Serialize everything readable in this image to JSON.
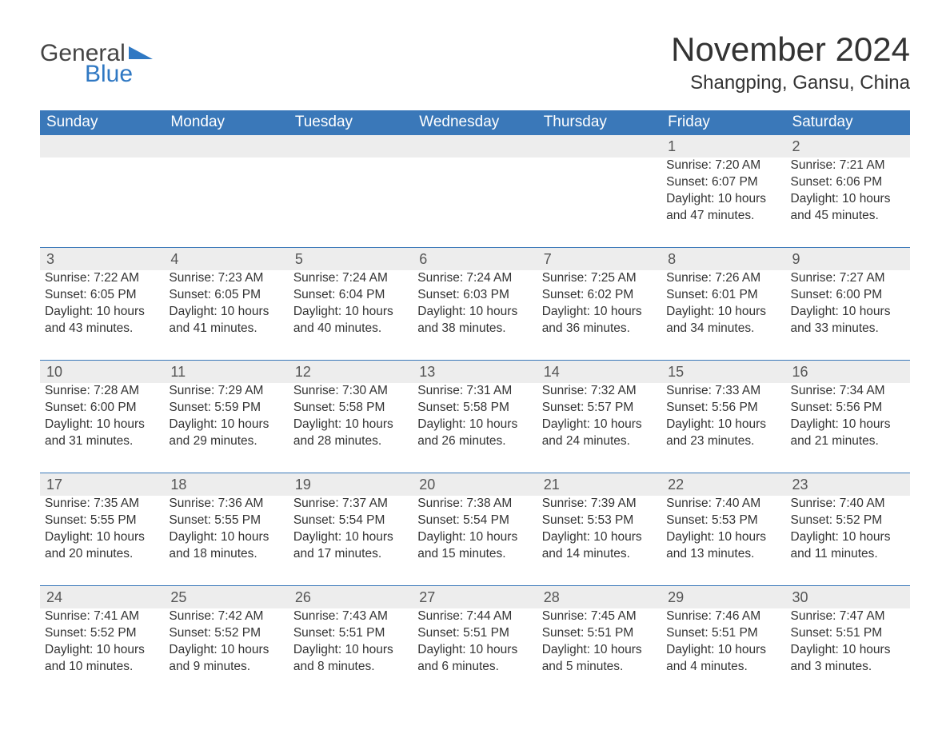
{
  "brand": {
    "part1": "General",
    "part2": "Blue",
    "logo_color": "#2f78c3"
  },
  "title": "November 2024",
  "location": "Shangping, Gansu, China",
  "colors": {
    "header_bg": "#3a78b9",
    "header_text": "#ffffff",
    "daynum_bg": "#ededed",
    "daynum_border": "#3a78b9",
    "body_text": "#333333",
    "background": "#ffffff"
  },
  "weekdays": [
    "Sunday",
    "Monday",
    "Tuesday",
    "Wednesday",
    "Thursday",
    "Friday",
    "Saturday"
  ],
  "weeks": [
    [
      null,
      null,
      null,
      null,
      null,
      {
        "n": "1",
        "sr": "Sunrise: 7:20 AM",
        "ss": "Sunset: 6:07 PM",
        "dl": "Daylight: 10 hours and 47 minutes."
      },
      {
        "n": "2",
        "sr": "Sunrise: 7:21 AM",
        "ss": "Sunset: 6:06 PM",
        "dl": "Daylight: 10 hours and 45 minutes."
      }
    ],
    [
      {
        "n": "3",
        "sr": "Sunrise: 7:22 AM",
        "ss": "Sunset: 6:05 PM",
        "dl": "Daylight: 10 hours and 43 minutes."
      },
      {
        "n": "4",
        "sr": "Sunrise: 7:23 AM",
        "ss": "Sunset: 6:05 PM",
        "dl": "Daylight: 10 hours and 41 minutes."
      },
      {
        "n": "5",
        "sr": "Sunrise: 7:24 AM",
        "ss": "Sunset: 6:04 PM",
        "dl": "Daylight: 10 hours and 40 minutes."
      },
      {
        "n": "6",
        "sr": "Sunrise: 7:24 AM",
        "ss": "Sunset: 6:03 PM",
        "dl": "Daylight: 10 hours and 38 minutes."
      },
      {
        "n": "7",
        "sr": "Sunrise: 7:25 AM",
        "ss": "Sunset: 6:02 PM",
        "dl": "Daylight: 10 hours and 36 minutes."
      },
      {
        "n": "8",
        "sr": "Sunrise: 7:26 AM",
        "ss": "Sunset: 6:01 PM",
        "dl": "Daylight: 10 hours and 34 minutes."
      },
      {
        "n": "9",
        "sr": "Sunrise: 7:27 AM",
        "ss": "Sunset: 6:00 PM",
        "dl": "Daylight: 10 hours and 33 minutes."
      }
    ],
    [
      {
        "n": "10",
        "sr": "Sunrise: 7:28 AM",
        "ss": "Sunset: 6:00 PM",
        "dl": "Daylight: 10 hours and 31 minutes."
      },
      {
        "n": "11",
        "sr": "Sunrise: 7:29 AM",
        "ss": "Sunset: 5:59 PM",
        "dl": "Daylight: 10 hours and 29 minutes."
      },
      {
        "n": "12",
        "sr": "Sunrise: 7:30 AM",
        "ss": "Sunset: 5:58 PM",
        "dl": "Daylight: 10 hours and 28 minutes."
      },
      {
        "n": "13",
        "sr": "Sunrise: 7:31 AM",
        "ss": "Sunset: 5:58 PM",
        "dl": "Daylight: 10 hours and 26 minutes."
      },
      {
        "n": "14",
        "sr": "Sunrise: 7:32 AM",
        "ss": "Sunset: 5:57 PM",
        "dl": "Daylight: 10 hours and 24 minutes."
      },
      {
        "n": "15",
        "sr": "Sunrise: 7:33 AM",
        "ss": "Sunset: 5:56 PM",
        "dl": "Daylight: 10 hours and 23 minutes."
      },
      {
        "n": "16",
        "sr": "Sunrise: 7:34 AM",
        "ss": "Sunset: 5:56 PM",
        "dl": "Daylight: 10 hours and 21 minutes."
      }
    ],
    [
      {
        "n": "17",
        "sr": "Sunrise: 7:35 AM",
        "ss": "Sunset: 5:55 PM",
        "dl": "Daylight: 10 hours and 20 minutes."
      },
      {
        "n": "18",
        "sr": "Sunrise: 7:36 AM",
        "ss": "Sunset: 5:55 PM",
        "dl": "Daylight: 10 hours and 18 minutes."
      },
      {
        "n": "19",
        "sr": "Sunrise: 7:37 AM",
        "ss": "Sunset: 5:54 PM",
        "dl": "Daylight: 10 hours and 17 minutes."
      },
      {
        "n": "20",
        "sr": "Sunrise: 7:38 AM",
        "ss": "Sunset: 5:54 PM",
        "dl": "Daylight: 10 hours and 15 minutes."
      },
      {
        "n": "21",
        "sr": "Sunrise: 7:39 AM",
        "ss": "Sunset: 5:53 PM",
        "dl": "Daylight: 10 hours and 14 minutes."
      },
      {
        "n": "22",
        "sr": "Sunrise: 7:40 AM",
        "ss": "Sunset: 5:53 PM",
        "dl": "Daylight: 10 hours and 13 minutes."
      },
      {
        "n": "23",
        "sr": "Sunrise: 7:40 AM",
        "ss": "Sunset: 5:52 PM",
        "dl": "Daylight: 10 hours and 11 minutes."
      }
    ],
    [
      {
        "n": "24",
        "sr": "Sunrise: 7:41 AM",
        "ss": "Sunset: 5:52 PM",
        "dl": "Daylight: 10 hours and 10 minutes."
      },
      {
        "n": "25",
        "sr": "Sunrise: 7:42 AM",
        "ss": "Sunset: 5:52 PM",
        "dl": "Daylight: 10 hours and 9 minutes."
      },
      {
        "n": "26",
        "sr": "Sunrise: 7:43 AM",
        "ss": "Sunset: 5:51 PM",
        "dl": "Daylight: 10 hours and 8 minutes."
      },
      {
        "n": "27",
        "sr": "Sunrise: 7:44 AM",
        "ss": "Sunset: 5:51 PM",
        "dl": "Daylight: 10 hours and 6 minutes."
      },
      {
        "n": "28",
        "sr": "Sunrise: 7:45 AM",
        "ss": "Sunset: 5:51 PM",
        "dl": "Daylight: 10 hours and 5 minutes."
      },
      {
        "n": "29",
        "sr": "Sunrise: 7:46 AM",
        "ss": "Sunset: 5:51 PM",
        "dl": "Daylight: 10 hours and 4 minutes."
      },
      {
        "n": "30",
        "sr": "Sunrise: 7:47 AM",
        "ss": "Sunset: 5:51 PM",
        "dl": "Daylight: 10 hours and 3 minutes."
      }
    ]
  ]
}
